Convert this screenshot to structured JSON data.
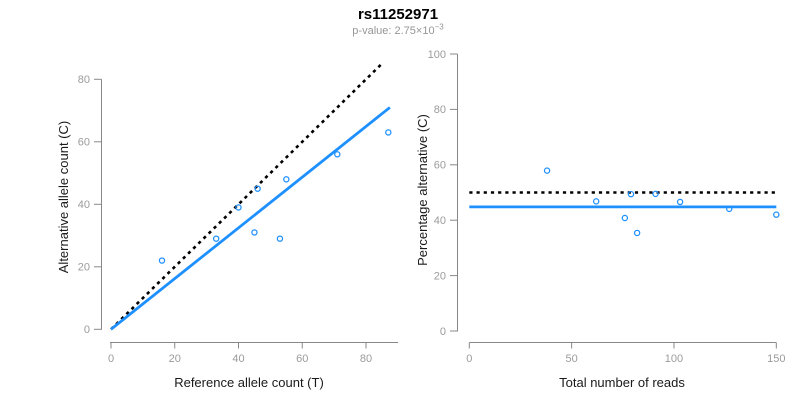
{
  "header": {
    "title": "rs11252971",
    "subtitle_prefix": "p-value: 2.75×10",
    "subtitle_exponent": "−3"
  },
  "colors": {
    "accent_blue": "#1E90FF",
    "reference_black": "#000000",
    "spine_gray": "#888888",
    "tick_label_gray": "#9B9B9B",
    "axis_title_dark": "#1A1A1A",
    "subtitle_gray": "#969696",
    "title_black": "#000000"
  },
  "chart_data": [
    {
      "type": "scatter",
      "panel": "left",
      "xlabel": "Reference allele count (T)",
      "ylabel": "Alternative allele count (C)",
      "xlim": [
        0,
        88
      ],
      "ylim": [
        0,
        85
      ],
      "xticks": [
        0,
        20,
        40,
        60,
        80
      ],
      "yticks": [
        0,
        20,
        40,
        60,
        80
      ],
      "grid": false,
      "legend": "none",
      "points": [
        [
          16,
          22
        ],
        [
          33,
          29
        ],
        [
          40,
          39
        ],
        [
          45,
          31
        ],
        [
          46,
          45
        ],
        [
          53,
          29
        ],
        [
          55,
          48
        ],
        [
          71,
          56
        ],
        [
          87,
          63
        ]
      ],
      "lines": [
        {
          "name": "identity-dotted-line",
          "style": "dotted",
          "color": "#000000",
          "from": [
            0,
            0
          ],
          "to": [
            85,
            85
          ]
        },
        {
          "name": "fit-line",
          "style": "solid",
          "color": "#1E90FF",
          "from": [
            0,
            0
          ],
          "to": [
            87.5,
            71
          ]
        }
      ]
    },
    {
      "type": "scatter",
      "panel": "right",
      "xlabel": "Total number of reads",
      "ylabel": "Percentage alternative (C)",
      "xlim": [
        0,
        150
      ],
      "ylim": [
        0,
        100
      ],
      "xticks": [
        0,
        50,
        100,
        150
      ],
      "yticks": [
        0,
        20,
        40,
        60,
        80,
        100
      ],
      "grid": false,
      "legend": "none",
      "points": [
        [
          38,
          57.9
        ],
        [
          62,
          46.8
        ],
        [
          76,
          40.8
        ],
        [
          79,
          49.4
        ],
        [
          82,
          35.4
        ],
        [
          91,
          49.5
        ],
        [
          103,
          46.6
        ],
        [
          127,
          44.1
        ],
        [
          150,
          42.0
        ]
      ],
      "lines": [
        {
          "name": "expected-50-percent-dotted-line",
          "style": "dotted",
          "color": "#000000",
          "from": [
            0,
            50
          ],
          "to": [
            150,
            50
          ]
        },
        {
          "name": "mean-percentage-line",
          "style": "solid",
          "color": "#1E90FF",
          "from": [
            0,
            44.8
          ],
          "to": [
            150,
            44.8
          ]
        }
      ]
    }
  ]
}
